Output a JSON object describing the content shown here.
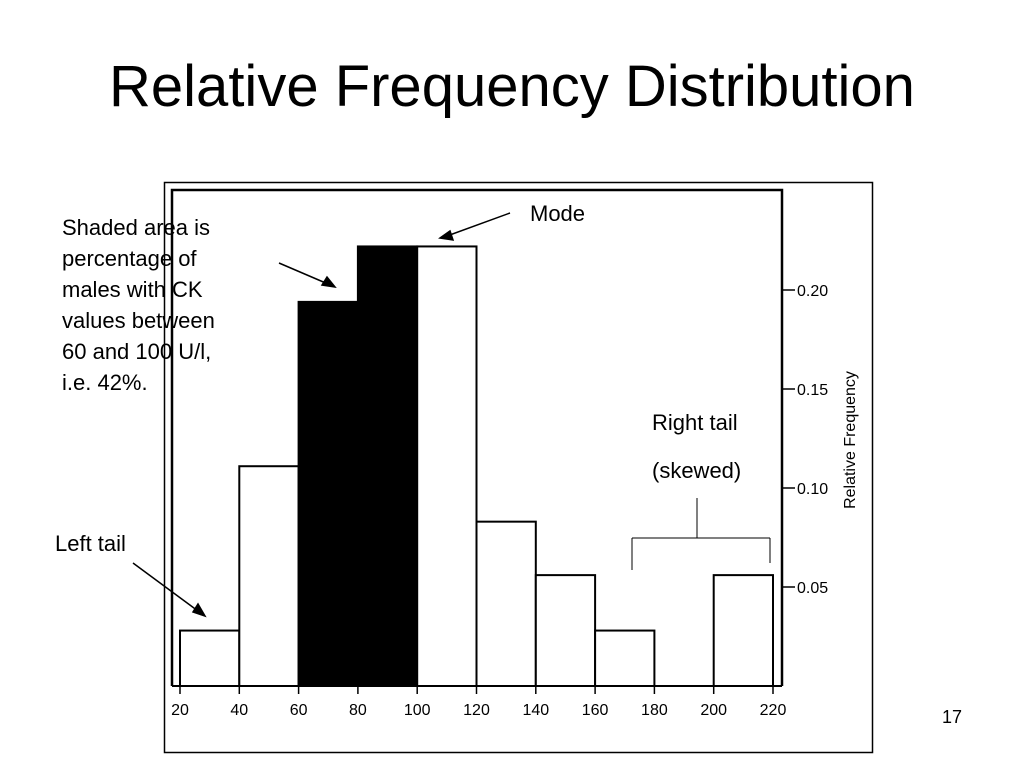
{
  "slide": {
    "title": "Relative Frequency Distribution",
    "page_number": "17"
  },
  "annotations": {
    "shaded_area": [
      "Shaded area is",
      "percentage of",
      "males with CK",
      "values between",
      "60 and 100 U/l,",
      "i.e. 42%."
    ],
    "mode": "Mode",
    "left_tail": "Left tail",
    "right_tail": [
      "Right tail",
      "(skewed)"
    ]
  },
  "chart_data": {
    "type": "bar",
    "title": "",
    "xlabel": "",
    "ylabel": "Relative Frequency",
    "bins": [
      {
        "from": 20,
        "to": 40,
        "value": 0.028,
        "shaded": false
      },
      {
        "from": 40,
        "to": 60,
        "value": 0.111,
        "shaded": false
      },
      {
        "from": 60,
        "to": 80,
        "value": 0.194,
        "shaded": true
      },
      {
        "from": 80,
        "to": 100,
        "value": 0.222,
        "shaded": true
      },
      {
        "from": 100,
        "to": 120,
        "value": 0.222,
        "shaded": false
      },
      {
        "from": 120,
        "to": 140,
        "value": 0.083,
        "shaded": false
      },
      {
        "from": 140,
        "to": 160,
        "value": 0.056,
        "shaded": false
      },
      {
        "from": 160,
        "to": 180,
        "value": 0.028,
        "shaded": false
      },
      {
        "from": 180,
        "to": 200,
        "value": 0,
        "shaded": false
      },
      {
        "from": 200,
        "to": 220,
        "value": 0.056,
        "shaded": false
      }
    ],
    "x_ticks": [
      20,
      40,
      60,
      80,
      100,
      120,
      140,
      160,
      180,
      200,
      220
    ],
    "y_ticks": [
      "0.05",
      "0.10",
      "0.15",
      "0.20"
    ],
    "y_tick_values": [
      0.05,
      0.1,
      0.15,
      0.2
    ],
    "xlim": [
      20,
      220
    ],
    "ylim": [
      0,
      0.25
    ],
    "y_axis_side": "right",
    "grid": false,
    "colors": {
      "shaded": "#000000",
      "unshaded": "#ffffff",
      "stroke": "#000000"
    }
  }
}
